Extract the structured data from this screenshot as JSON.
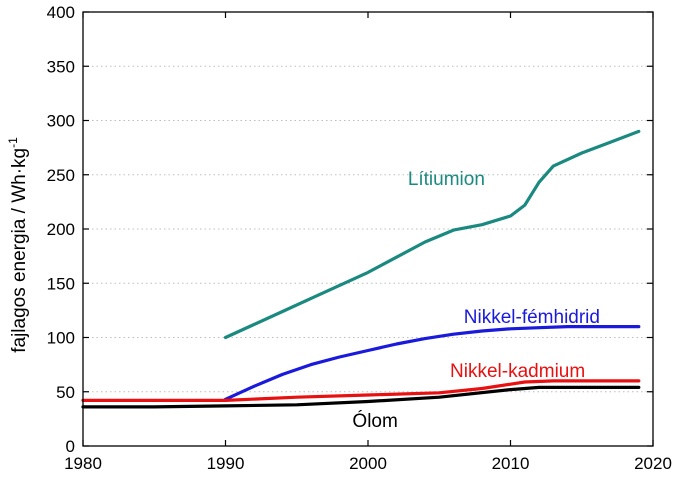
{
  "chart_data": {
    "type": "line",
    "title": "",
    "xlabel": "",
    "ylabel": "fajlagos energia / Wh·kg",
    "ylabel_sup": "-1",
    "xlim": [
      1980,
      2020
    ],
    "ylim": [
      0,
      400
    ],
    "x_ticks": [
      "1980",
      "1990",
      "2000",
      "2010",
      "2020"
    ],
    "y_ticks": [
      "0",
      "50",
      "100",
      "150",
      "200",
      "250",
      "300",
      "350",
      "400"
    ],
    "grid": "horizontal dotted",
    "series": [
      {
        "name": "Lítiumion",
        "color": "#1a8a80",
        "x": [
          1990,
          1992,
          1994,
          1996,
          1998,
          2000,
          2002,
          2004,
          2006,
          2008,
          2010,
          2011,
          2012,
          2013,
          2015,
          2017,
          2019
        ],
        "y": [
          100,
          112,
          124,
          136,
          148,
          160,
          174,
          188,
          199,
          204,
          212,
          222,
          243,
          258,
          270,
          280,
          290
        ]
      },
      {
        "name": "Nikkel-fémhidrid",
        "color": "#1a1adc",
        "x": [
          1990,
          1992,
          1994,
          1996,
          1998,
          2000,
          2002,
          2004,
          2006,
          2008,
          2010,
          2012,
          2014,
          2016,
          2019
        ],
        "y": [
          43,
          55,
          66,
          75,
          82,
          88,
          94,
          99,
          103,
          106,
          108,
          109,
          110,
          110,
          110
        ]
      },
      {
        "name": "Nikkel-kadmium",
        "color": "#e81010",
        "x": [
          1980,
          1985,
          1990,
          1995,
          2000,
          2005,
          2008,
          2010,
          2011,
          2013,
          2016,
          2019
        ],
        "y": [
          42,
          42,
          42,
          45,
          47,
          49,
          53,
          57,
          59,
          60,
          60,
          60
        ]
      },
      {
        "name": "Ólom",
        "color": "#000000",
        "x": [
          1980,
          1985,
          1990,
          1995,
          2000,
          2005,
          2010,
          2012,
          2015,
          2019
        ],
        "y": [
          36,
          36,
          37,
          38,
          41,
          45,
          52,
          54,
          54,
          54
        ]
      }
    ],
    "labels": [
      {
        "text": "Lítiumion",
        "series": 0,
        "x": 2005.5,
        "y": 247
      },
      {
        "text": "Nikkel-fémhidrid",
        "series": 1,
        "x": 2011.5,
        "y": 120
      },
      {
        "text": "Nikkel-kadmium",
        "series": 2,
        "x": 2010.5,
        "y": 70
      },
      {
        "text": "Ólom",
        "series": 3,
        "x": 2000.5,
        "y": 24
      }
    ]
  }
}
